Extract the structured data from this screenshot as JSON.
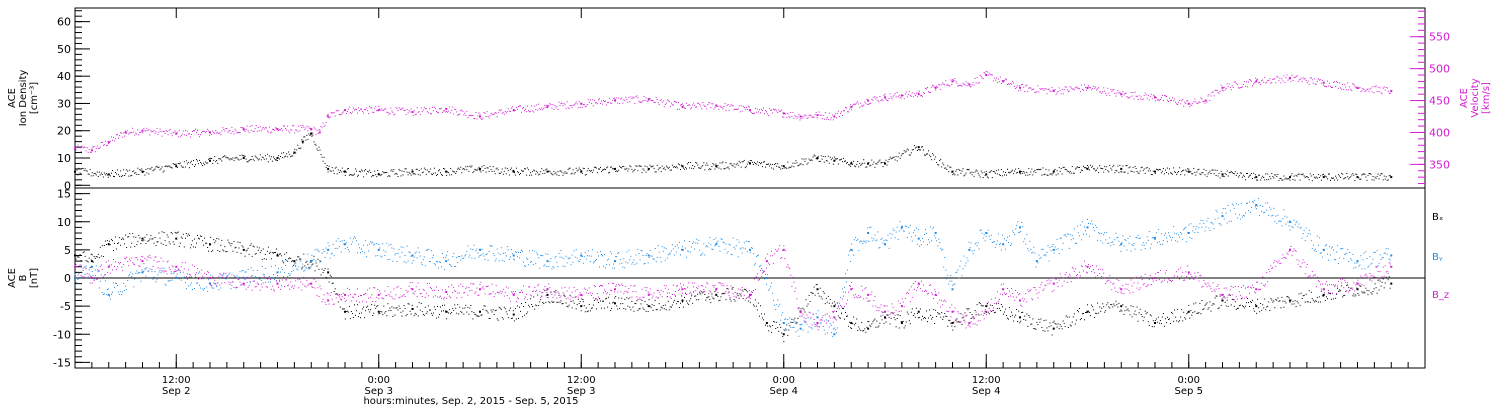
{
  "colors": {
    "black": "#000000",
    "magenta": "#d21ed2",
    "blue": "#1e8ce6"
  },
  "chart_data": [
    {
      "type": "scatter",
      "panel": "plasma",
      "left_axis": {
        "label_lines": [
          "ACE",
          "Ion Density",
          "[cm⁻³]"
        ],
        "ylim": [
          -1,
          65
        ],
        "ticks": [
          0,
          10,
          20,
          30,
          40,
          50,
          60
        ]
      },
      "right_axis": {
        "label_lines": [
          "ACE",
          "Velocity",
          "[km/s]"
        ],
        "ylim": [
          313,
          595
        ],
        "ticks": [
          350,
          400,
          450,
          500,
          550
        ],
        "color": "#d21ed2"
      },
      "series": [
        {
          "axis": "left",
          "color": "#000000",
          "x": [
            0,
            2,
            4,
            6,
            8,
            10,
            12,
            13,
            13.5,
            14,
            15,
            16,
            18,
            20,
            22,
            24,
            26,
            28,
            30,
            32,
            34,
            36,
            38,
            40,
            42,
            44,
            45,
            46,
            47,
            48,
            50,
            52,
            54,
            56,
            58,
            60,
            62,
            64,
            66,
            68,
            70,
            72,
            74,
            76,
            78
          ],
          "y": [
            5,
            4,
            5,
            7,
            9,
            10,
            10,
            12,
            16,
            19,
            6,
            5,
            4,
            5,
            5,
            6,
            5,
            5,
            5,
            6,
            6,
            7,
            7,
            8,
            7,
            10,
            9,
            8,
            8,
            8,
            14,
            5,
            4,
            5,
            5,
            6,
            6,
            5,
            5,
            4,
            3,
            3,
            3,
            3,
            3
          ]
        },
        {
          "axis": "right",
          "color": "#d21ed2",
          "x": [
            0,
            1,
            2,
            3,
            4,
            6,
            8,
            10,
            12,
            14,
            14.5,
            15,
            16,
            18,
            20,
            22,
            24,
            26,
            28,
            30,
            32,
            34,
            36,
            38,
            40,
            42,
            43,
            44,
            45,
            46,
            47,
            48,
            49,
            50,
            51,
            52,
            53,
            54,
            55,
            56,
            58,
            60,
            62,
            64,
            66,
            67,
            68,
            70,
            72,
            74,
            76,
            78
          ],
          "y": [
            375,
            372,
            385,
            400,
            403,
            398,
            400,
            405,
            405,
            405,
            400,
            425,
            435,
            435,
            432,
            437,
            425,
            435,
            440,
            445,
            450,
            452,
            440,
            442,
            435,
            430,
            425,
            427,
            425,
            440,
            450,
            455,
            458,
            460,
            470,
            480,
            475,
            490,
            480,
            470,
            465,
            470,
            460,
            455,
            445,
            450,
            470,
            480,
            485,
            478,
            470,
            465
          ]
        }
      ]
    },
    {
      "type": "scatter",
      "panel": "magnetic_field",
      "left_axis": {
        "label_lines": [
          "ACE",
          "B",
          "[nT]"
        ],
        "ylim": [
          -16,
          16
        ],
        "ticks": [
          -15,
          -10,
          -5,
          0,
          5,
          10,
          15
        ]
      },
      "legend": [
        {
          "name": "Bₓ",
          "color": "#000000"
        },
        {
          "name": "Bᵧ",
          "color": "#1e8ce6"
        },
        {
          "name": "B_z",
          "color": "#d21ed2"
        }
      ],
      "series": [
        {
          "name": "Bx",
          "color": "#000000",
          "x": [
            0,
            1,
            2,
            4,
            6,
            8,
            10,
            12,
            13,
            14,
            15,
            16,
            18,
            20,
            22,
            24,
            26,
            28,
            30,
            32,
            34,
            36,
            38,
            40,
            41,
            42,
            43,
            44,
            45,
            46,
            47,
            48,
            49,
            50,
            52,
            54,
            56,
            58,
            60,
            62,
            64,
            66,
            68,
            70,
            72,
            74,
            76,
            78
          ],
          "y": [
            4,
            3,
            6,
            7,
            7,
            6,
            5,
            4,
            3,
            3,
            1,
            -6,
            -6,
            -5.5,
            -6,
            -6,
            -6.5,
            -3,
            -5,
            -4.5,
            -5,
            -4,
            -3,
            -3,
            -8,
            -10,
            -6,
            -2,
            -5,
            -8,
            -9,
            -7,
            -8,
            -6,
            -8,
            -5,
            -7,
            -9,
            -6,
            -5,
            -8,
            -6,
            -4,
            -5,
            -4,
            -3,
            -2,
            -1
          ]
        },
        {
          "name": "By",
          "color": "#1e8ce6",
          "x": [
            0,
            1,
            2,
            4,
            6,
            8,
            10,
            12,
            14,
            15,
            16,
            18,
            20,
            22,
            24,
            26,
            28,
            30,
            32,
            34,
            36,
            38,
            40,
            41,
            42,
            43,
            44,
            45,
            46,
            47,
            48,
            49,
            50,
            51,
            52,
            53,
            54,
            55,
            56,
            57,
            58,
            60,
            62,
            64,
            66,
            68,
            70,
            72,
            74,
            76,
            78
          ],
          "y": [
            0,
            2,
            -3,
            1,
            0,
            -1,
            0,
            1,
            3,
            5,
            6,
            5,
            4,
            3,
            5,
            4,
            3,
            4,
            3,
            4,
            5,
            6,
            5,
            0,
            -8,
            -9,
            -7,
            -10,
            5,
            8,
            6,
            9,
            7,
            8,
            -2,
            5,
            8,
            6,
            9,
            3,
            5,
            9,
            6,
            7,
            8,
            11,
            13,
            10,
            5,
            3,
            4
          ]
        },
        {
          "name": "Bz",
          "color": "#d21ed2",
          "x": [
            0,
            1,
            2,
            4,
            6,
            8,
            10,
            12,
            14,
            15,
            16,
            18,
            20,
            22,
            24,
            26,
            28,
            30,
            32,
            34,
            36,
            38,
            40,
            41,
            42,
            43,
            44,
            45,
            46,
            47,
            48,
            49,
            50,
            51,
            52,
            53,
            54,
            55,
            56,
            58,
            60,
            62,
            64,
            66,
            68,
            70,
            72,
            74,
            76,
            78
          ],
          "y": [
            2,
            0,
            2,
            3,
            2,
            0,
            -1,
            -1,
            -1,
            -4,
            -3,
            -3,
            -2,
            -2.5,
            -2,
            -3,
            -2,
            -3,
            -2,
            -3,
            -2,
            -2,
            -3,
            3,
            5,
            -6,
            -8,
            -7,
            -2,
            -3,
            -6,
            -5,
            -1,
            -3,
            -6,
            -8,
            -6,
            -2,
            -4,
            -1,
            2,
            -2,
            0,
            1,
            -3,
            -2,
            5,
            -2,
            -1,
            2
          ]
        }
      ]
    }
  ],
  "time_axis": {
    "xlim_hours": [
      0,
      80
    ],
    "major_ticks": [
      {
        "hour": 6,
        "time": "12:00",
        "date": "Sep 2"
      },
      {
        "hour": 18,
        "time": "0:00",
        "date": "Sep 3"
      },
      {
        "hour": 30,
        "time": "12:00",
        "date": "Sep 3"
      },
      {
        "hour": 42,
        "time": "0:00",
        "date": "Sep 4"
      },
      {
        "hour": 54,
        "time": "12:00",
        "date": "Sep 4"
      },
      {
        "hour": 66,
        "time": "0:00",
        "date": "Sep 5"
      }
    ],
    "title": "hours:minutes, Sep.  2, 2015 - Sep.  5, 2015"
  }
}
